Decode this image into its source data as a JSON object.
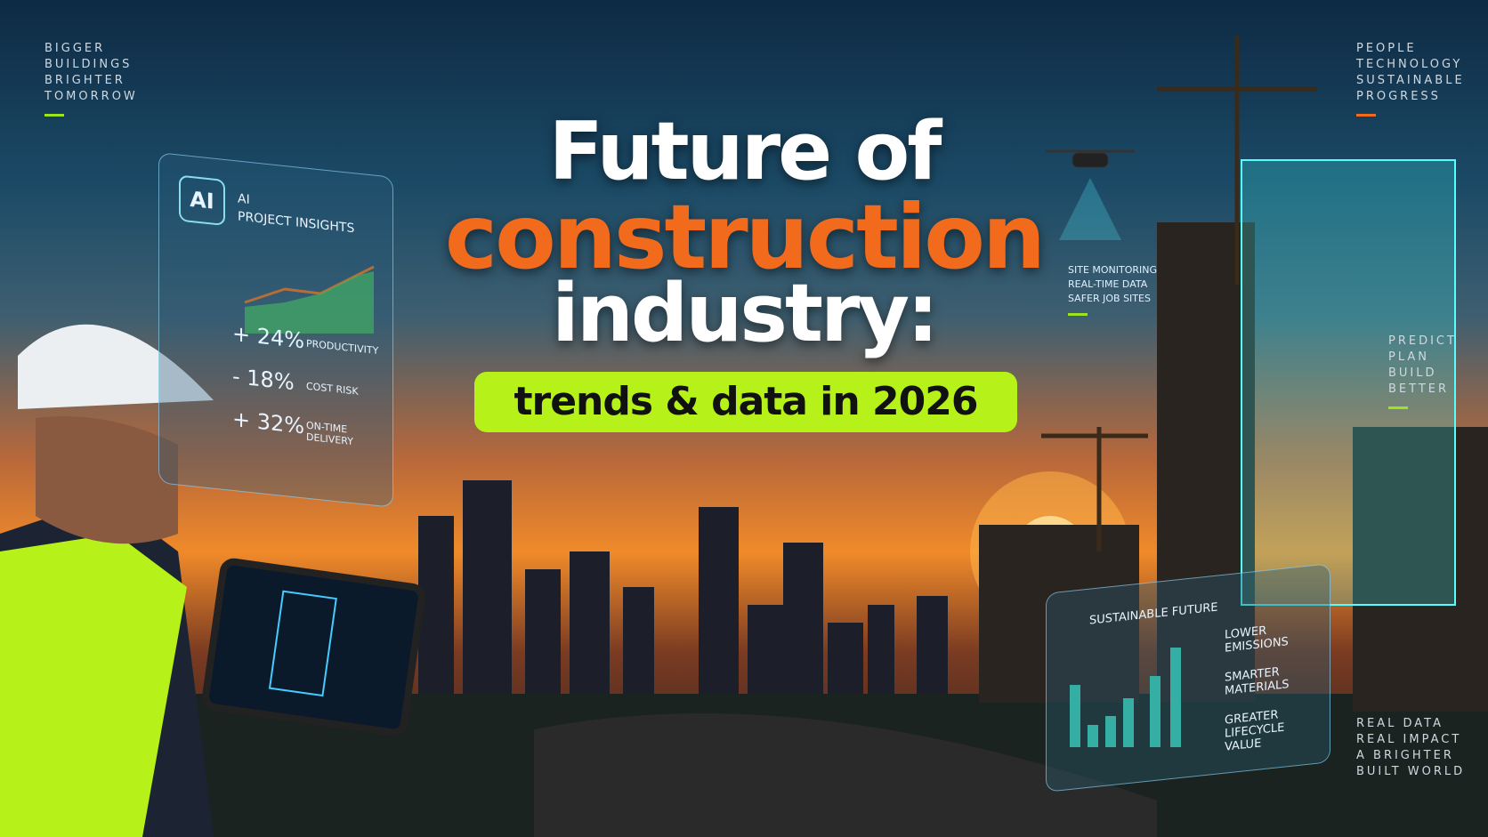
{
  "corner_top_left": {
    "lines": [
      "BIGGER",
      "BUILDINGS",
      "BRIGHTER",
      "TOMORROW"
    ]
  },
  "corner_top_right": {
    "lines": [
      "PEOPLE",
      "TECHNOLOGY",
      "SUSTAINABLE",
      "PROGRESS"
    ]
  },
  "headline": {
    "line1": "Future of",
    "line2": "construction",
    "line3": "industry:",
    "subtitle": "trends & data in 2026"
  },
  "ai_panel": {
    "badge": "AI",
    "title": [
      "AI",
      "PROJECT INSIGHTS"
    ],
    "metrics": [
      {
        "value": "+ 24%",
        "label": "PRODUCTIVITY"
      },
      {
        "value": "- 18%",
        "label": "COST RISK"
      },
      {
        "value": "+ 32%",
        "label": "ON-TIME DELIVERY"
      }
    ]
  },
  "drone_panel": {
    "lines": [
      "SITE MONITORING",
      "REAL-TIME DATA",
      "SAFER JOB SITES"
    ]
  },
  "right_middle": {
    "lines": [
      "PREDICT",
      "PLAN",
      "BUILD",
      "BETTER"
    ]
  },
  "sustainable_panel": {
    "title": "SUSTAINABLE FUTURE",
    "items": [
      "LOWER EMISSIONS",
      "SMARTER MATERIALS",
      "GREATER LIFECYCLE VALUE"
    ]
  },
  "corner_bottom_right": {
    "lines": [
      "REAL DATA",
      "REAL IMPACT",
      "A BRIGHTER",
      "BUILT WORLD"
    ]
  }
}
